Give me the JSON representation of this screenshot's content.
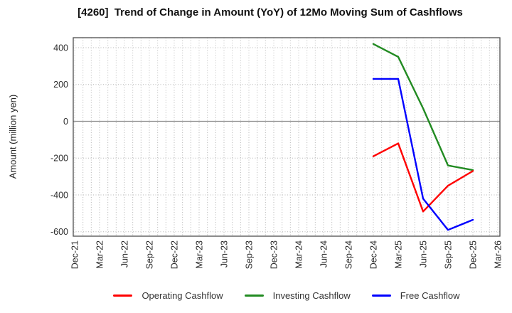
{
  "chart_data": {
    "type": "line",
    "title": "[4260]  Trend of Change in Amount (YoY) of 12Mo Moving Sum of Cashflows",
    "ylabel": "Amount (million yen)",
    "xlabel": "",
    "x_tick_labels": [
      "Dec-21",
      "Mar-22",
      "Jun-22",
      "Sep-22",
      "Dec-22",
      "Mar-23",
      "Jun-23",
      "Sep-23",
      "Dec-23",
      "Mar-24",
      "Jun-24",
      "Sep-24",
      "Dec-24",
      "Mar-25",
      "Jun-25",
      "Sep-25",
      "Dec-25",
      "Mar-26"
    ],
    "months_per_tick": 3,
    "yticks": [
      400,
      200,
      0,
      -200,
      -400,
      -600
    ],
    "ylim": [
      -624,
      454
    ],
    "grid": "dotted; vertical line every month, horizontal line at each 200 tick",
    "zero_line": true,
    "legend_position": "bottom",
    "series": [
      {
        "name": "Operating Cashflow",
        "color": "#ff0000",
        "x": [
          "Dec-24",
          "Mar-25",
          "Jun-25",
          "Sep-25",
          "Dec-25"
        ],
        "values": [
          -190,
          -120,
          -490,
          -350,
          -270
        ]
      },
      {
        "name": "Investing Cashflow",
        "color": "#228b22",
        "x": [
          "Dec-24",
          "Mar-25",
          "Jun-25",
          "Sep-25",
          "Dec-25"
        ],
        "values": [
          420,
          350,
          70,
          -240,
          -265
        ]
      },
      {
        "name": "Free Cashflow",
        "color": "#0000ff",
        "x": [
          "Dec-24",
          "Mar-25",
          "Jun-25",
          "Sep-25",
          "Dec-25"
        ],
        "values": [
          230,
          230,
          -420,
          -590,
          -535
        ]
      }
    ],
    "draw_order": [
      "Investing Cashflow",
      "Operating Cashflow",
      "Free Cashflow"
    ]
  },
  "colors": {
    "background": "#ffffff",
    "grid": "#b8b8b8",
    "zero_line": "#8a8a8a",
    "border": "#4d4d4d",
    "tick_label": "#2b2b2b",
    "title": "#111111",
    "legend_text": "#333333"
  }
}
